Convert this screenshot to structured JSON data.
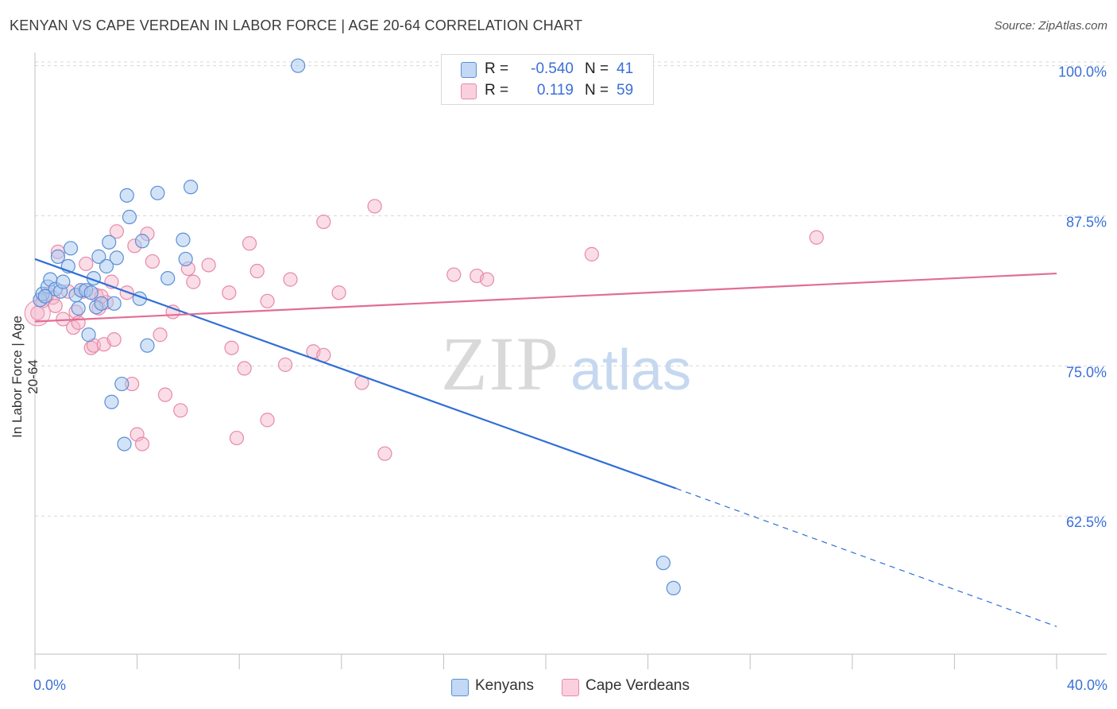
{
  "title": "KENYAN VS CAPE VERDEAN IN LABOR FORCE | AGE 20-64 CORRELATION CHART",
  "source": "Source: ZipAtlas.com",
  "watermark": {
    "zip": "ZIP",
    "atlas": "atlas"
  },
  "legend_top": {
    "rows": [
      {
        "r_label": "R =",
        "r_value": "-0.540",
        "n_label": "N =",
        "n_value": "41",
        "color": "#a8c8f0"
      },
      {
        "r_label": "R =",
        "r_value": "0.119",
        "n_label": "N =",
        "n_value": "59",
        "color": "#f5b3c8"
      }
    ]
  },
  "legend_bottom": {
    "kenyans": "Kenyans",
    "cape_verdeans": "Cape Verdeans"
  },
  "colors": {
    "kenyan_fill": "#a8c8f0",
    "kenyan_stroke": "#5b8fd6",
    "kenyan_line": "#2f6fd6",
    "capeverdean_fill": "#f5b3c8",
    "capeverdean_stroke": "#e68aa8",
    "capeverdean_line": "#e26d95",
    "axis_label": "#3a6fd8",
    "grid": "#d8d8d8"
  },
  "chart_data": {
    "type": "scatter",
    "title": "KENYAN VS CAPE VERDEAN IN LABOR FORCE | AGE 20-64 CORRELATION CHART",
    "xlabel": "",
    "ylabel": "In Labor Force | Age 20-64",
    "xlim": [
      0,
      40
    ],
    "ylim": [
      51,
      101.5
    ],
    "x_tick_labels": [
      "0.0%",
      "40.0%"
    ],
    "y_ticks": [
      62.5,
      75.0,
      87.5,
      100.0
    ],
    "y_tick_labels": [
      "62.5%",
      "75.0%",
      "87.5%",
      "100.0%"
    ],
    "grid": "horizontal dashed",
    "series": [
      {
        "name": "Kenyans",
        "points": [
          [
            0.2,
            80.5
          ],
          [
            0.3,
            81.0
          ],
          [
            0.5,
            81.6
          ],
          [
            0.6,
            82.2
          ],
          [
            0.8,
            81.4
          ],
          [
            0.9,
            84.1
          ],
          [
            1.0,
            81.2
          ],
          [
            1.1,
            82.0
          ],
          [
            1.3,
            83.3
          ],
          [
            1.4,
            84.8
          ],
          [
            1.6,
            80.9
          ],
          [
            1.7,
            79.8
          ],
          [
            1.8,
            81.3
          ],
          [
            2.0,
            81.3
          ],
          [
            2.1,
            77.6
          ],
          [
            2.3,
            82.3
          ],
          [
            2.4,
            79.9
          ],
          [
            2.5,
            84.1
          ],
          [
            2.6,
            80.2
          ],
          [
            2.8,
            83.3
          ],
          [
            2.9,
            85.3
          ],
          [
            3.1,
            80.2
          ],
          [
            3.2,
            84.0
          ],
          [
            3.4,
            73.5
          ],
          [
            3.5,
            68.5
          ],
          [
            3.6,
            89.2
          ],
          [
            3.7,
            87.4
          ],
          [
            4.1,
            80.6
          ],
          [
            4.2,
            85.4
          ],
          [
            4.4,
            76.7
          ],
          [
            4.8,
            89.4
          ],
          [
            5.2,
            82.3
          ],
          [
            5.8,
            85.5
          ],
          [
            5.9,
            83.9
          ],
          [
            6.1,
            89.9
          ],
          [
            3.0,
            72.0
          ],
          [
            10.3,
            100.0
          ],
          [
            24.6,
            58.6
          ],
          [
            25.0,
            56.5
          ],
          [
            0.4,
            80.8
          ],
          [
            2.2,
            81.1
          ]
        ],
        "trend": {
          "x": [
            0,
            25.1
          ],
          "y": [
            83.9,
            64.8
          ],
          "extension": {
            "x": [
              25.1,
              40
            ],
            "y": [
              64.8,
              53.3
            ]
          }
        }
      },
      {
        "name": "Cape Verdeans",
        "points": [
          [
            0.1,
            79.4
          ],
          [
            0.3,
            80.4
          ],
          [
            0.5,
            81.0
          ],
          [
            0.7,
            80.7
          ],
          [
            0.8,
            80.0
          ],
          [
            0.9,
            84.5
          ],
          [
            1.1,
            78.9
          ],
          [
            1.3,
            81.2
          ],
          [
            1.5,
            78.2
          ],
          [
            1.6,
            79.5
          ],
          [
            1.7,
            78.6
          ],
          [
            1.9,
            81.2
          ],
          [
            2.0,
            83.5
          ],
          [
            2.2,
            76.5
          ],
          [
            2.3,
            76.7
          ],
          [
            2.4,
            80.9
          ],
          [
            2.5,
            79.8
          ],
          [
            2.7,
            76.8
          ],
          [
            2.8,
            80.3
          ],
          [
            3.0,
            82.0
          ],
          [
            3.1,
            77.2
          ],
          [
            3.2,
            86.2
          ],
          [
            3.6,
            81.1
          ],
          [
            3.8,
            73.5
          ],
          [
            3.9,
            85.0
          ],
          [
            4.0,
            69.3
          ],
          [
            4.2,
            68.5
          ],
          [
            4.4,
            86.0
          ],
          [
            4.6,
            83.7
          ],
          [
            4.9,
            77.6
          ],
          [
            5.1,
            72.6
          ],
          [
            5.4,
            79.5
          ],
          [
            5.7,
            71.3
          ],
          [
            6.0,
            83.1
          ],
          [
            6.2,
            82.0
          ],
          [
            6.8,
            83.4
          ],
          [
            7.6,
            81.1
          ],
          [
            7.7,
            76.5
          ],
          [
            7.9,
            69.0
          ],
          [
            8.2,
            74.8
          ],
          [
            8.4,
            85.2
          ],
          [
            8.7,
            82.9
          ],
          [
            9.1,
            80.4
          ],
          [
            9.1,
            70.5
          ],
          [
            10.0,
            82.2
          ],
          [
            9.8,
            75.1
          ],
          [
            10.9,
            76.2
          ],
          [
            11.3,
            75.9
          ],
          [
            11.3,
            87.0
          ],
          [
            11.9,
            81.1
          ],
          [
            12.8,
            73.6
          ],
          [
            13.3,
            88.3
          ],
          [
            13.7,
            67.7
          ],
          [
            16.4,
            82.6
          ],
          [
            17.3,
            82.5
          ],
          [
            17.7,
            82.2
          ],
          [
            21.8,
            84.3
          ],
          [
            30.6,
            85.7
          ],
          [
            2.6,
            80.8
          ]
        ],
        "trend": {
          "x": [
            0,
            40
          ],
          "y": [
            78.7,
            82.7
          ]
        }
      }
    ]
  }
}
